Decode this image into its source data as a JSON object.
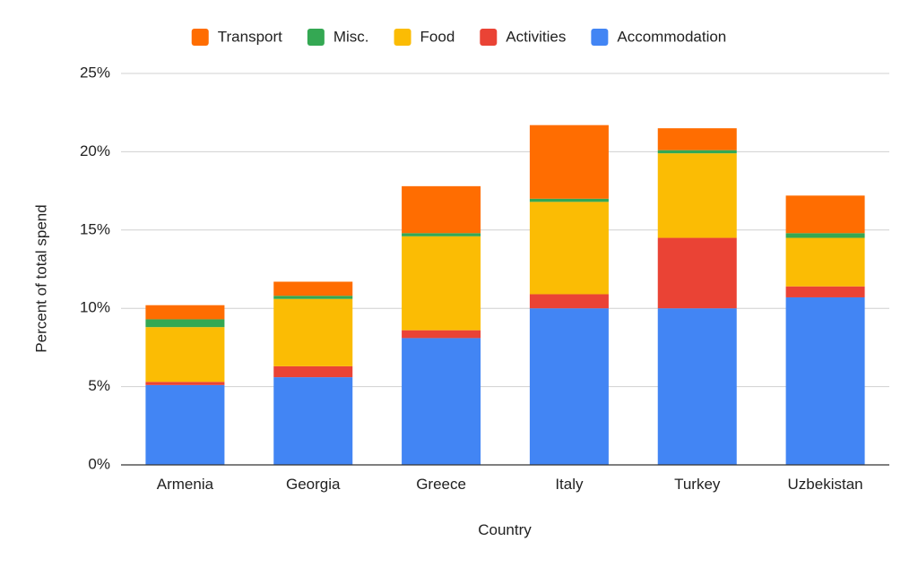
{
  "chart_data": {
    "type": "bar",
    "stacked": true,
    "xlabel": "Country",
    "ylabel": "Percent of total spend",
    "ylim": [
      0,
      25
    ],
    "yticks": [
      0,
      5,
      10,
      15,
      20,
      25
    ],
    "ytick_labels": [
      "0%",
      "5%",
      "10%",
      "15%",
      "20%",
      "25%"
    ],
    "grid": true,
    "legend_position": "top",
    "categories": [
      "Armenia",
      "Georgia",
      "Greece",
      "Italy",
      "Turkey",
      "Uzbekistan"
    ],
    "series": [
      {
        "name": "Accommodation",
        "color": "#4285F4",
        "values": [
          5.1,
          5.6,
          8.1,
          10.0,
          10.0,
          10.7
        ]
      },
      {
        "name": "Activities",
        "color": "#EA4335",
        "values": [
          0.2,
          0.7,
          0.5,
          0.9,
          4.5,
          0.7
        ]
      },
      {
        "name": "Food",
        "color": "#FBBC04",
        "values": [
          3.5,
          4.3,
          6.0,
          5.9,
          5.4,
          3.1
        ]
      },
      {
        "name": "Misc.",
        "color": "#34A853",
        "values": [
          0.5,
          0.2,
          0.2,
          0.2,
          0.2,
          0.3
        ]
      },
      {
        "name": "Transport",
        "color": "#FF6D01",
        "values": [
          0.9,
          0.9,
          3.0,
          4.7,
          1.4,
          2.4
        ]
      }
    ],
    "legend_order": [
      "Transport",
      "Misc.",
      "Food",
      "Activities",
      "Accommodation"
    ]
  }
}
